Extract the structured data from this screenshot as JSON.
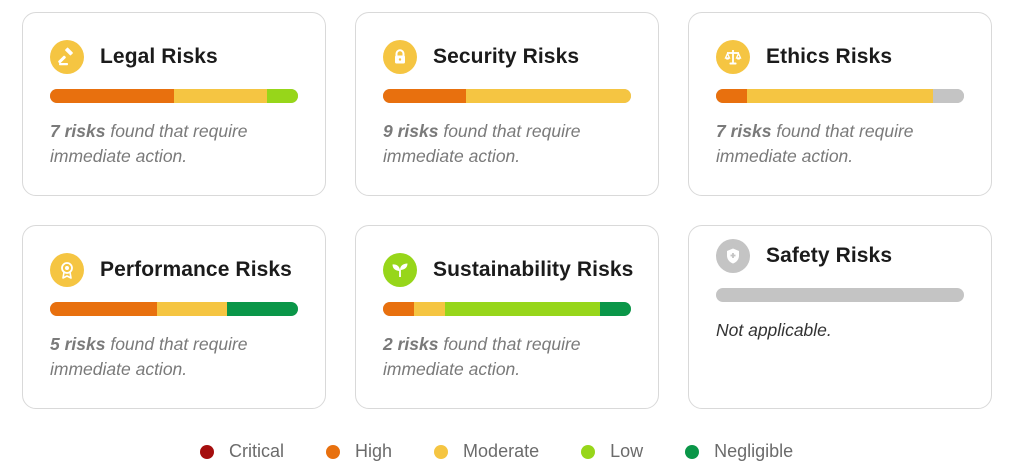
{
  "colors": {
    "critical": "#a50e0e",
    "high": "#e8700e",
    "moderate": "#f5c542",
    "low": "#97d61a",
    "negligible": "#0a9648",
    "na": "#c4c4c4",
    "icon_amber": "#f5c542",
    "icon_green": "#97d61a",
    "icon_grey": "#c4c4c4"
  },
  "cards": [
    {
      "title": "Legal Risks",
      "icon": "gavel-icon",
      "count_text": "7 risks",
      "rest_text": " found that require immediate action.",
      "bar": [
        {
          "level": "high",
          "pct": 50
        },
        {
          "level": "moderate",
          "pct": 37.5
        },
        {
          "level": "low",
          "pct": 12.5
        }
      ]
    },
    {
      "title": "Security Risks",
      "icon": "lock-icon",
      "count_text": "9 risks",
      "rest_text": " found that require immediate action.",
      "bar": [
        {
          "level": "high",
          "pct": 33.3
        },
        {
          "level": "moderate",
          "pct": 66.7
        }
      ]
    },
    {
      "title": "Ethics Risks",
      "icon": "scales-icon",
      "count_text": "7 risks",
      "rest_text": " found that require immediate action.",
      "bar": [
        {
          "level": "high",
          "pct": 12.5
        },
        {
          "level": "moderate",
          "pct": 75
        },
        {
          "level": "na",
          "pct": 12.5
        }
      ]
    },
    {
      "title": "Performance Risks",
      "icon": "award-icon",
      "count_text": "5 risks",
      "rest_text": " found that require immediate action.",
      "bar": [
        {
          "level": "high",
          "pct": 43
        },
        {
          "level": "moderate",
          "pct": 28.5
        },
        {
          "level": "negligible",
          "pct": 28.5
        }
      ]
    },
    {
      "title": "Sustainability Risks",
      "icon": "sprout-icon",
      "count_text": "2 risks",
      "rest_text": " found that require immediate action.",
      "bar": [
        {
          "level": "high",
          "pct": 12.5
        },
        {
          "level": "moderate",
          "pct": 12.5
        },
        {
          "level": "low",
          "pct": 62.5
        },
        {
          "level": "negligible",
          "pct": 12.5
        }
      ]
    },
    {
      "title": "Safety Risks",
      "icon": "shield-icon",
      "desc": "Not applicable.",
      "bar": [
        {
          "level": "na",
          "pct": 100
        }
      ]
    }
  ],
  "legend": [
    {
      "label": "Critical",
      "level": "critical"
    },
    {
      "label": "High",
      "level": "high"
    },
    {
      "label": "Moderate",
      "level": "moderate"
    },
    {
      "label": "Low",
      "level": "low"
    },
    {
      "label": "Negligible",
      "level": "negligible"
    }
  ]
}
